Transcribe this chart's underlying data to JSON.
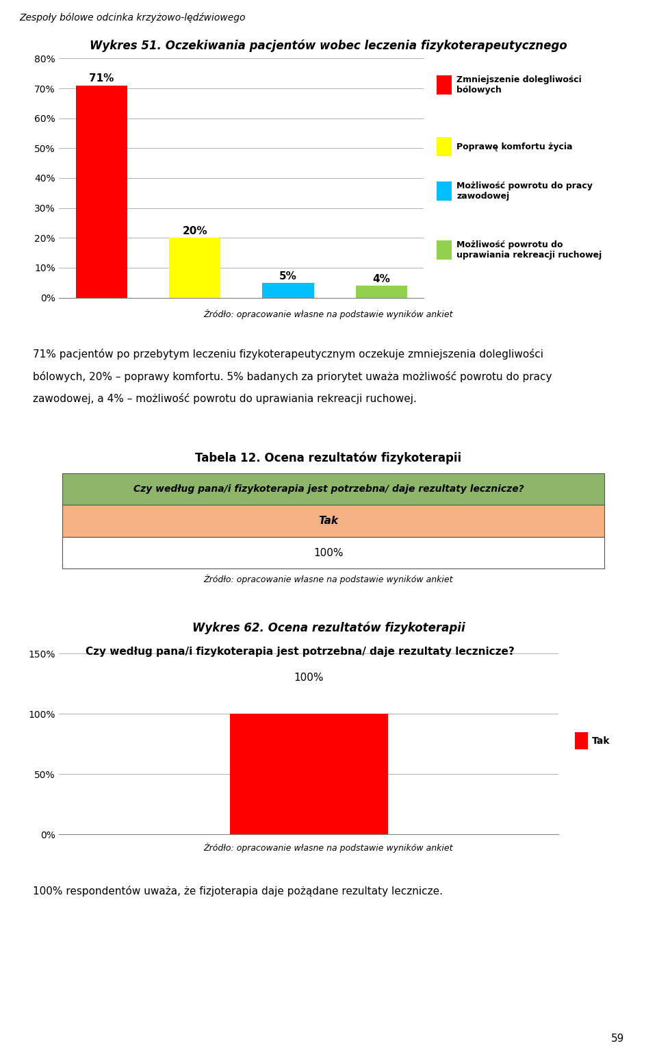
{
  "page_title": "Zespoły bólowe odcinka krzyżowo-lędźwiowego",
  "chart1_title": "Wykres 51. Oczekiwania pacjentów wobec leczenia fizykoterapeutycznego",
  "chart1_values": [
    71,
    20,
    5,
    4
  ],
  "chart1_labels": [
    "71%",
    "20%",
    "5%",
    "4%"
  ],
  "chart1_colors": [
    "#FF0000",
    "#FFFF00",
    "#00BFFF",
    "#92D050"
  ],
  "chart1_ytick_labels": [
    "0%",
    "10%",
    "20%",
    "30%",
    "40%",
    "50%",
    "60%",
    "70%",
    "80%"
  ],
  "chart1_legend_labels": [
    "Zmniejszenie dolegliwości\nbólowych",
    "Poprawę komfortu życia",
    "Możliwość powrotu do pracy\nzawodowej",
    "Możliwość powrotu do\nuprawiania rekreacji ruchowej"
  ],
  "chart1_legend_colors": [
    "#FF0000",
    "#FFFF00",
    "#00BFFF",
    "#92D050"
  ],
  "chart1_source": "Źródło: opracowanie własne na podstawie wyników ankiet",
  "text1_line1": "71% pacjentów po przebytym leczeniu fizykoterapeutycznym oczekuje zmniejszenia dolegliwości",
  "text1_line2": "bólowych, 20% – poprawy komfortu. 5% badanych za priorytet uważa możliwość powrotu do pracy",
  "text1_line3": "zawodowej, a 4% – możliwość powrotu do uprawiania rekreacji ruchowej.",
  "table_title": "Tabela 12. Ocena rezultatów fizykoterapii",
  "table_header": "Czy według pana/i fizykoterapia jest potrzebna/ daje rezultaty lecznicze?",
  "table_row1": "Tak",
  "table_row2": "100%",
  "table_header_color": "#8DB66A",
  "table_row1_color": "#F4B183",
  "table_row2_color": "#FFFFFF",
  "table_source": "Źródło: opracowanie własne na podstawie wyników ankiet",
  "chart2_title": "Wykres 62. Ocena rezultatów fizykoterapii",
  "chart2_subtitle": "Czy według pana/i fizykoterapia jest potrzebna/ daje rezultaty lecznicze?",
  "chart2_value": 100,
  "chart2_label": "100%",
  "chart2_color": "#FF0000",
  "chart2_ytick_labels": [
    "0%",
    "50%",
    "100%",
    "150%"
  ],
  "chart2_legend_label": "Tak",
  "chart2_source": "Źródło: opracowanie własne na podstawie wyników ankiet",
  "text2": "100% respondentów uważa, że fizjoterapia daje pożądane rezultaty lecznicze.",
  "page_number": "59"
}
